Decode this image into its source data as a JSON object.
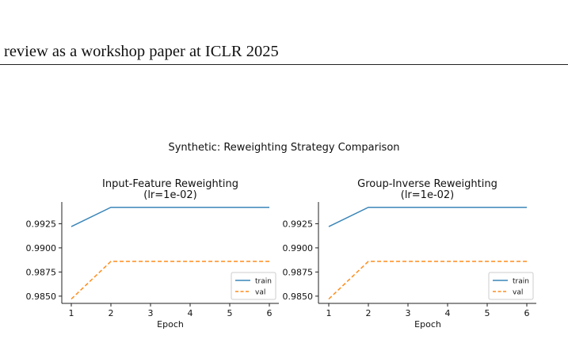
{
  "page": {
    "header": "review as a workshop paper at ICLR 2025",
    "suptitle": "Synthetic: Reweighting Strategy Comparison"
  },
  "colors": {
    "train": "#3a86b8",
    "val": "#ff8c1a",
    "axis": "#222222"
  },
  "chart_data": [
    {
      "type": "line",
      "title": "Input-Feature Reweighting\n(lr=1e-02)",
      "xlabel": "Epoch",
      "ylabel": "",
      "x": [
        1,
        2,
        3,
        4,
        5,
        6
      ],
      "xticks": [
        1,
        2,
        3,
        4,
        5,
        6
      ],
      "yticks": [
        0.985,
        0.9875,
        0.99,
        0.9925
      ],
      "ytick_labels": [
        "0.9850",
        "0.9875",
        "0.9900",
        "0.9925"
      ],
      "ylim": [
        0.98425,
        0.99475
      ],
      "legend": "lower-right",
      "series": [
        {
          "name": "train",
          "style": "solid",
          "values": [
            0.9922,
            0.9942,
            0.9942,
            0.9942,
            0.9942,
            0.9942
          ]
        },
        {
          "name": "val",
          "style": "dashed",
          "values": [
            0.9847,
            0.9886,
            0.9886,
            0.9886,
            0.9886,
            0.9886
          ]
        }
      ]
    },
    {
      "type": "line",
      "title": "Group-Inverse Reweighting\n(lr=1e-02)",
      "xlabel": "Epoch",
      "ylabel": "",
      "x": [
        1,
        2,
        3,
        4,
        5,
        6
      ],
      "xticks": [
        1,
        2,
        3,
        4,
        5,
        6
      ],
      "yticks": [
        0.985,
        0.9875,
        0.99,
        0.9925
      ],
      "ytick_labels": [
        "0.9850",
        "0.9875",
        "0.9900",
        "0.9925"
      ],
      "ylim": [
        0.98425,
        0.99475
      ],
      "legend": "lower-right",
      "series": [
        {
          "name": "train",
          "style": "solid",
          "values": [
            0.9922,
            0.9942,
            0.9942,
            0.9942,
            0.9942,
            0.9942
          ]
        },
        {
          "name": "val",
          "style": "dashed",
          "values": [
            0.9847,
            0.9886,
            0.9886,
            0.9886,
            0.9886,
            0.9886
          ]
        }
      ]
    }
  ]
}
